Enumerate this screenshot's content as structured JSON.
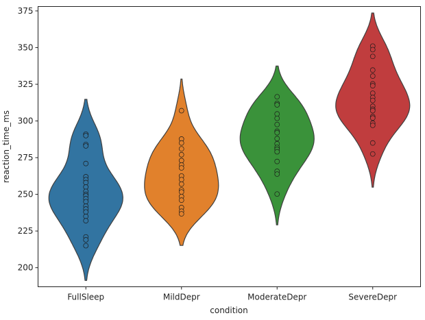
{
  "chart_data": {
    "type": "violin",
    "title": "",
    "xlabel": "condition",
    "ylabel": "reaction_time_ms",
    "ylim": [
      187,
      378
    ],
    "yticks": [
      200,
      225,
      250,
      275,
      300,
      325,
      350,
      375
    ],
    "categories": [
      "FullSleep",
      "MildDepr",
      "ModerateDepr",
      "SevereDepr"
    ],
    "colors": [
      "#3274a1",
      "#e1812c",
      "#3a923a",
      "#c03d3e"
    ],
    "series": [
      {
        "name": "FullSleep",
        "values": [
          291,
          290,
          284,
          283,
          271,
          262,
          260,
          258,
          255,
          252,
          250,
          249,
          247,
          245,
          242,
          240,
          238,
          235,
          232,
          221,
          219,
          215
        ]
      },
      {
        "name": "MildDepr",
        "values": [
          307,
          287.7,
          285,
          281,
          277,
          273,
          270,
          268,
          262.5,
          260,
          257,
          253,
          251.6,
          248.5,
          246,
          241,
          238.5,
          236.7
        ]
      },
      {
        "name": "ModerateDepr",
        "values": [
          316.5,
          312,
          311,
          304.8,
          301.8,
          297.6,
          293,
          292,
          288,
          284.5,
          282,
          280.7,
          279,
          272.4,
          265.7,
          263.8,
          250.2
        ]
      },
      {
        "name": "SevereDepr",
        "values": [
          351,
          348.6,
          344,
          334.7,
          330.6,
          325.3,
          324,
          318.9,
          316,
          314,
          310,
          308,
          307,
          303,
          302,
          298.5,
          297,
          285,
          277.5
        ]
      }
    ]
  }
}
